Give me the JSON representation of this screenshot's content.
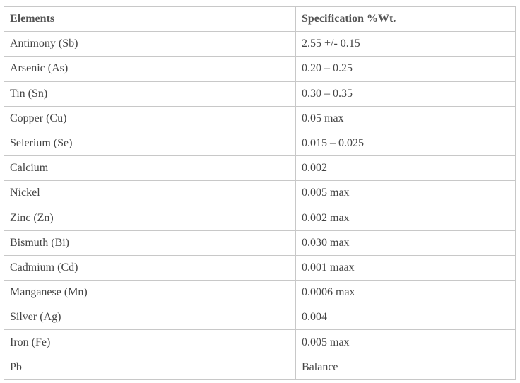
{
  "table": {
    "headers": {
      "elements": "Elements",
      "specification": "Specification %Wt."
    },
    "rows": [
      {
        "element": "Antimony (Sb)",
        "spec": "2.55 +/- 0.15"
      },
      {
        "element": "Arsenic (As)",
        "spec": "0.20 – 0.25"
      },
      {
        "element": "Tin (Sn)",
        "spec": "0.30 – 0.35"
      },
      {
        "element": "Copper (Cu)",
        "spec": "0.05 max"
      },
      {
        "element": "Selerium (Se)",
        "spec": "0.015 – 0.025"
      },
      {
        "element": "Calcium",
        "spec": "0.002"
      },
      {
        "element": "Nickel",
        "spec": "0.005 max"
      },
      {
        "element": "Zinc (Zn)",
        "spec": "0.002 max"
      },
      {
        "element": "Bismuth (Bi)",
        "spec": "0.030 max"
      },
      {
        "element": "Cadmium (Cd)",
        "spec": "0.001 maax"
      },
      {
        "element": "Manganese (Mn)",
        "spec": "0.0006 max"
      },
      {
        "element": "Silver (Ag)",
        "spec": "0.004"
      },
      {
        "element": "Iron (Fe)",
        "spec": "0.005 max"
      },
      {
        "element": "Pb",
        "spec": "Balance"
      }
    ]
  }
}
